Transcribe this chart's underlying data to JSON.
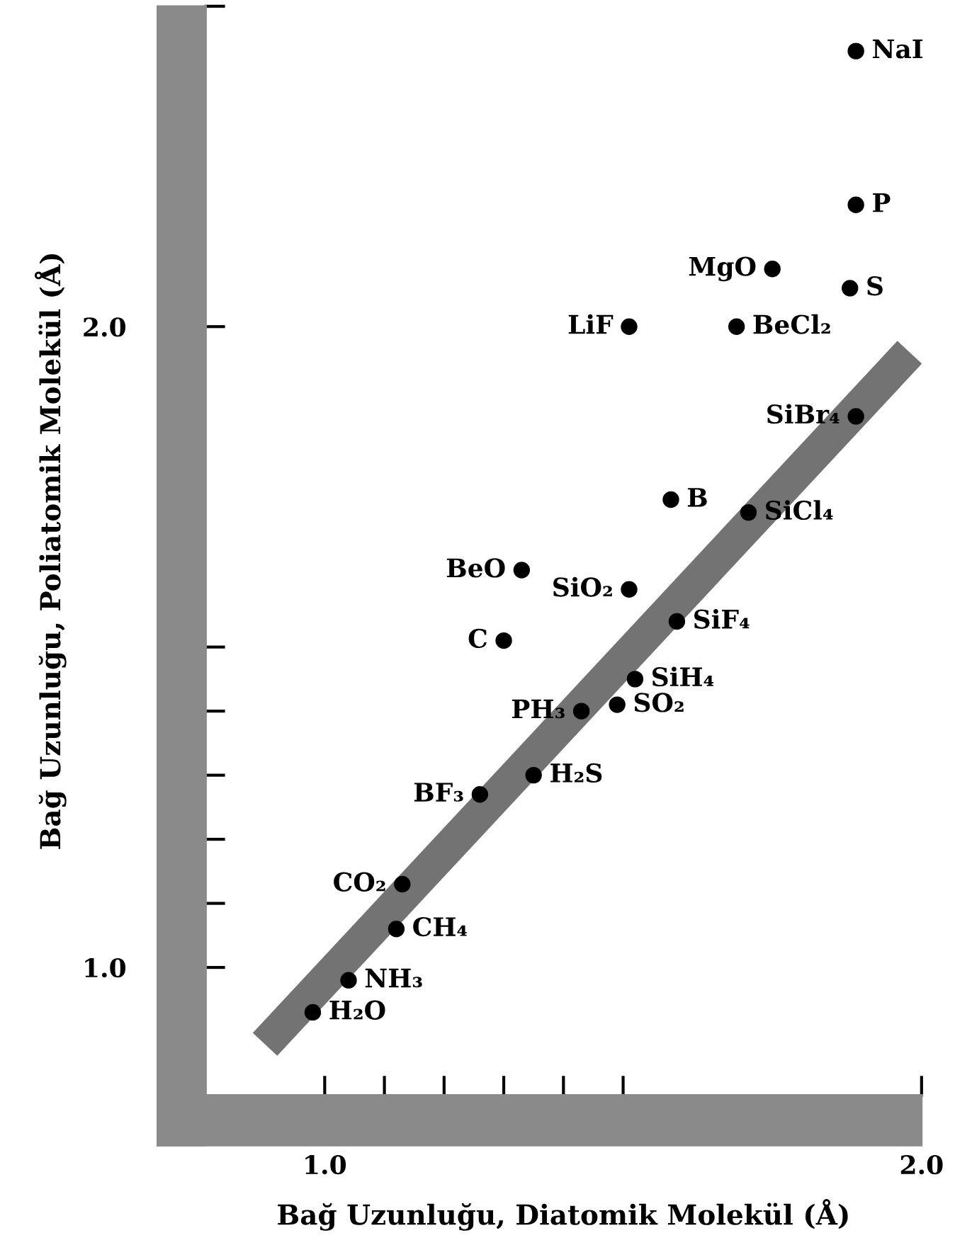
{
  "chart_data": {
    "type": "scatter",
    "xlabel": "Bağ Uzunluğu, Diatomik Molekül (Å)",
    "ylabel": "Bağ Uzunluğu, Poliatomik Molekül (Å)",
    "xlim": [
      0.8,
      2.0
    ],
    "ylim": [
      0.8,
      2.5
    ],
    "xticks": [
      {
        "value": 1.0,
        "label": "1.0"
      },
      {
        "value": 1.1,
        "label": null
      },
      {
        "value": 1.2,
        "label": null
      },
      {
        "value": 1.3,
        "label": null
      },
      {
        "value": 1.4,
        "label": null
      },
      {
        "value": 1.5,
        "label": null
      },
      {
        "value": 2.0,
        "label": "2.0"
      }
    ],
    "yticks": [
      {
        "value": 1.0,
        "label": "1.0"
      },
      {
        "value": 1.1,
        "label": null
      },
      {
        "value": 1.2,
        "label": null
      },
      {
        "value": 1.3,
        "label": null
      },
      {
        "value": 1.4,
        "label": null
      },
      {
        "value": 1.5,
        "label": null
      },
      {
        "value": 2.0,
        "label": "2.0"
      },
      {
        "value": 2.5,
        "label": null
      }
    ],
    "grid": false,
    "series": [
      {
        "type": "line",
        "color": "#5a5a5a",
        "x": [
          0.9,
          1.98
        ],
        "values": [
          0.88,
          1.96
        ]
      },
      {
        "marker": "circle",
        "color": "#000000",
        "x": [
          1.89,
          1.89,
          1.75,
          1.88,
          1.51,
          1.69,
          1.89,
          1.58,
          1.71,
          1.33,
          1.51,
          1.3,
          1.59,
          1.52,
          1.43,
          1.49,
          1.35,
          1.26,
          1.13,
          1.12,
          1.04,
          0.98
        ],
        "values": [
          2.43,
          2.19,
          2.09,
          2.06,
          2.0,
          2.0,
          1.86,
          1.73,
          1.71,
          1.62,
          1.59,
          1.51,
          1.54,
          1.45,
          1.4,
          1.41,
          1.3,
          1.27,
          1.13,
          1.06,
          0.98,
          0.93
        ]
      }
    ],
    "annotations": [
      {
        "text": "NaI",
        "x": 1.89,
        "y": 2.43
      },
      {
        "text": "P",
        "x": 1.89,
        "y": 2.19
      },
      {
        "text": "MgO",
        "x": 1.75,
        "y": 2.09
      },
      {
        "text": "S",
        "x": 1.88,
        "y": 2.06
      },
      {
        "text": "LiF",
        "x": 1.51,
        "y": 2.0
      },
      {
        "text": "BeCl₂",
        "x": 1.69,
        "y": 2.0
      },
      {
        "text": "SiBr₄",
        "x": 1.89,
        "y": 1.86
      },
      {
        "text": "B",
        "x": 1.58,
        "y": 1.73
      },
      {
        "text": "SiCl₄",
        "x": 1.71,
        "y": 1.71
      },
      {
        "text": "BeO",
        "x": 1.33,
        "y": 1.62
      },
      {
        "text": "SiO₂",
        "x": 1.51,
        "y": 1.59
      },
      {
        "text": "C",
        "x": 1.3,
        "y": 1.51
      },
      {
        "text": "SiF₄",
        "x": 1.59,
        "y": 1.54
      },
      {
        "text": "SiH₄",
        "x": 1.52,
        "y": 1.45
      },
      {
        "text": "PH₃",
        "x": 1.43,
        "y": 1.4
      },
      {
        "text": "SO₂",
        "x": 1.49,
        "y": 1.41
      },
      {
        "text": "H₂S",
        "x": 1.35,
        "y": 1.3
      },
      {
        "text": "BF₃",
        "x": 1.26,
        "y": 1.27
      },
      {
        "text": "CO₂",
        "x": 1.13,
        "y": 1.13
      },
      {
        "text": "CH₄",
        "x": 1.12,
        "y": 1.06
      },
      {
        "text": "NH₃",
        "x": 1.04,
        "y": 0.98
      },
      {
        "text": "H₂O",
        "x": 0.98,
        "y": 0.93
      }
    ]
  }
}
